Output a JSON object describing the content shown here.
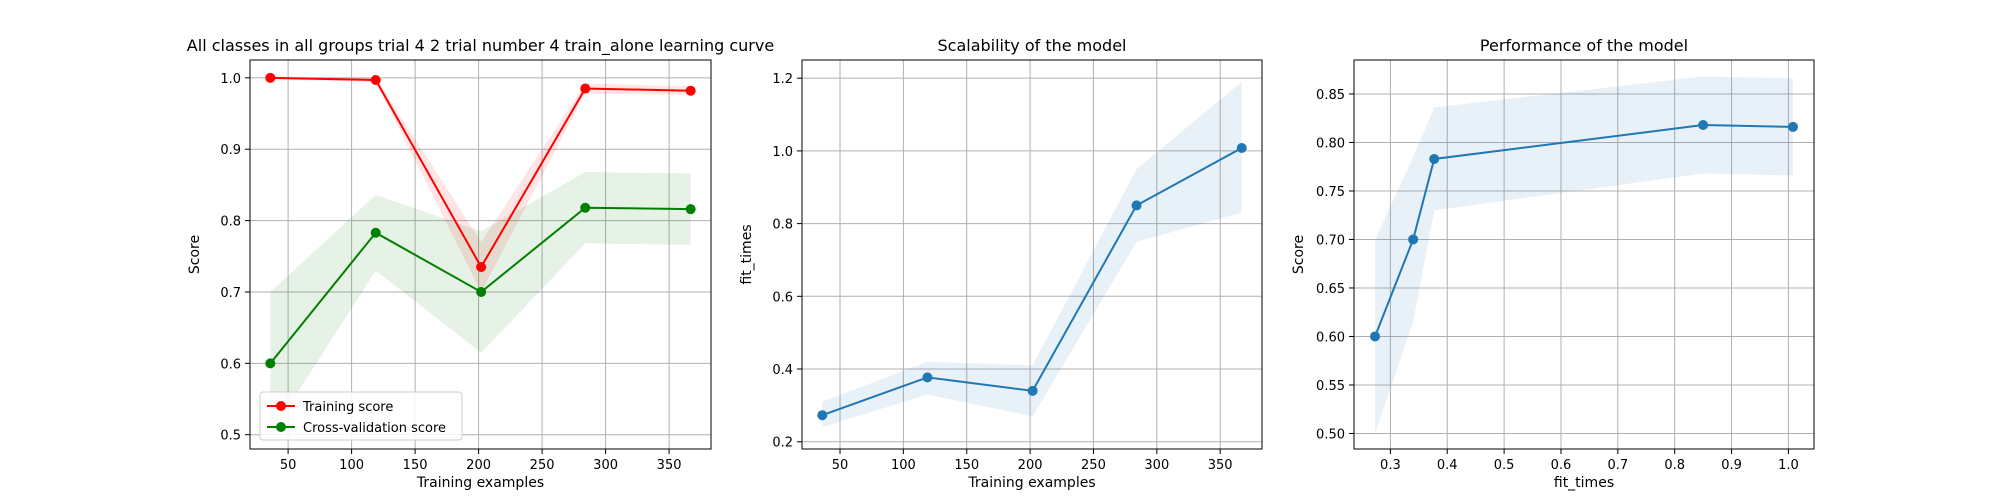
{
  "chart_data": [
    {
      "type": "line",
      "title": "All classes in all groups trial 4 2 trial number 4 train_alone learning curve",
      "xlabel": "Training examples",
      "ylabel": "Score",
      "xlim": [
        20,
        383
      ],
      "ylim": [
        0.48,
        1.025
      ],
      "xticks": [
        50,
        100,
        150,
        200,
        250,
        300,
        350
      ],
      "yticks": [
        0.5,
        0.6,
        0.7,
        0.8,
        0.9,
        1.0
      ],
      "ytick_labels": [
        "0.5",
        "0.6",
        "0.7",
        "0.8",
        "0.9",
        "1.0"
      ],
      "grid": true,
      "legend_position": "lower-left",
      "series": [
        {
          "name": "Training score",
          "color": "#ff0000",
          "x": [
            36,
            119,
            202,
            284,
            367
          ],
          "y": [
            1.0,
            0.997,
            0.735,
            0.985,
            0.982
          ],
          "band_lower": [
            0.998,
            0.994,
            0.7,
            0.978,
            0.976
          ],
          "band_upper": [
            1.002,
            1.0,
            0.77,
            0.992,
            0.988
          ]
        },
        {
          "name": "Cross-validation score",
          "color": "#008000",
          "x": [
            36,
            119,
            202,
            284,
            367
          ],
          "y": [
            0.6,
            0.783,
            0.7,
            0.818,
            0.816
          ],
          "band_lower": [
            0.5,
            0.73,
            0.615,
            0.768,
            0.766
          ],
          "band_upper": [
            0.7,
            0.836,
            0.785,
            0.868,
            0.866
          ]
        }
      ]
    },
    {
      "type": "line",
      "title": "Scalability of the model",
      "xlabel": "Training examples",
      "ylabel": "fit_times",
      "xlim": [
        20,
        383
      ],
      "ylim": [
        0.18,
        1.25
      ],
      "xticks": [
        50,
        100,
        150,
        200,
        250,
        300,
        350
      ],
      "yticks": [
        0.2,
        0.4,
        0.6,
        0.8,
        1.0,
        1.2
      ],
      "ytick_labels": [
        "0.2",
        "0.4",
        "0.6",
        "0.8",
        "1.0",
        "1.2"
      ],
      "grid": true,
      "series": [
        {
          "color": "#1f77b4",
          "x": [
            36,
            119,
            202,
            284,
            367
          ],
          "y": [
            0.273,
            0.377,
            0.34,
            0.85,
            1.008
          ],
          "band_lower": [
            0.24,
            0.33,
            0.27,
            0.75,
            0.83
          ],
          "band_upper": [
            0.31,
            0.42,
            0.41,
            0.95,
            1.19
          ]
        }
      ]
    },
    {
      "type": "line",
      "title": "Performance of the model",
      "xlabel": "fit_times",
      "ylabel": "Score",
      "xlim": [
        0.236,
        1.045
      ],
      "ylim": [
        0.484,
        0.885
      ],
      "xticks": [
        0.3,
        0.4,
        0.5,
        0.6,
        0.7,
        0.8,
        0.9,
        1.0
      ],
      "xtick_labels": [
        "0.3",
        "0.4",
        "0.5",
        "0.6",
        "0.7",
        "0.8",
        "0.9",
        "1.0"
      ],
      "yticks": [
        0.5,
        0.55,
        0.6,
        0.65,
        0.7,
        0.75,
        0.8,
        0.85
      ],
      "ytick_labels": [
        "0.50",
        "0.55",
        "0.60",
        "0.65",
        "0.70",
        "0.75",
        "0.80",
        "0.85"
      ],
      "grid": true,
      "series": [
        {
          "color": "#1f77b4",
          "x": [
            0.273,
            0.34,
            0.377,
            0.85,
            1.008
          ],
          "y": [
            0.6,
            0.7,
            0.783,
            0.818,
            0.816
          ],
          "band_x_sorted": [
            0.273,
            0.34,
            0.377,
            0.85,
            1.008
          ],
          "band_lower": [
            0.5,
            0.615,
            0.73,
            0.768,
            0.766
          ],
          "band_upper": [
            0.7,
            0.785,
            0.836,
            0.868,
            0.866
          ]
        }
      ]
    }
  ]
}
